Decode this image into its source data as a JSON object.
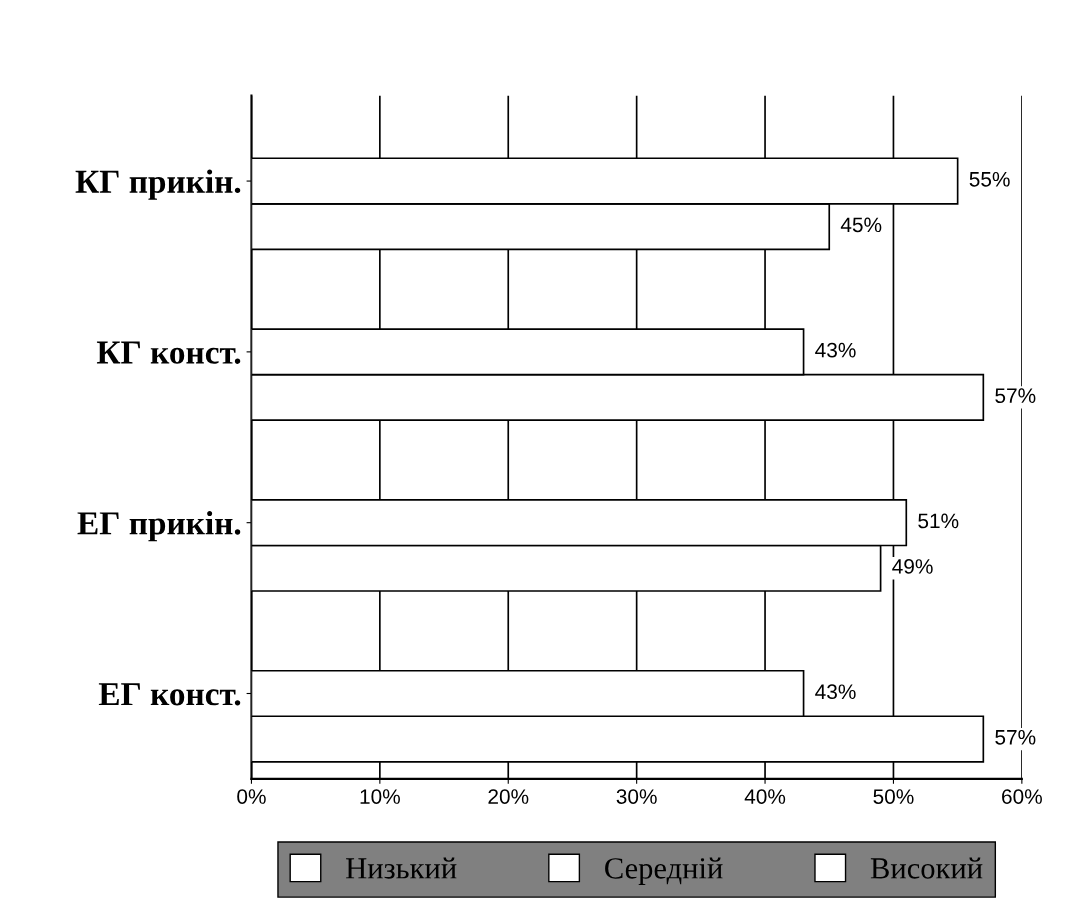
{
  "chart_data": {
    "type": "bar",
    "orientation": "horizontal",
    "categories": [
      "КГ прикін.",
      "КГ конст.",
      "ЕГ прикін.",
      "ЕГ конст."
    ],
    "series": [
      {
        "name": "Низький",
        "color": "#ffffff",
        "values": [
          45,
          57,
          49,
          57
        ],
        "value_labels": [
          "45%",
          "57%",
          "49%",
          "57%"
        ]
      },
      {
        "name": "Середній",
        "color": "#ffffff",
        "values": [
          55,
          43,
          51,
          43
        ],
        "value_labels": [
          "55%",
          "43%",
          "51%",
          "43%"
        ]
      },
      {
        "name": "Високий",
        "color": "#ffffff",
        "values": [
          null,
          null,
          null,
          null
        ]
      }
    ],
    "xlim": [
      0,
      60
    ],
    "xticks": [
      {
        "value": 0,
        "label": "0%"
      },
      {
        "value": 10,
        "label": "10%"
      },
      {
        "value": 20,
        "label": "20%"
      },
      {
        "value": 30,
        "label": "30%"
      },
      {
        "value": 40,
        "label": "40%"
      },
      {
        "value": 50,
        "label": "50%"
      },
      {
        "value": 60,
        "label": "60%"
      }
    ],
    "grid": "x",
    "legend": "bottom"
  }
}
